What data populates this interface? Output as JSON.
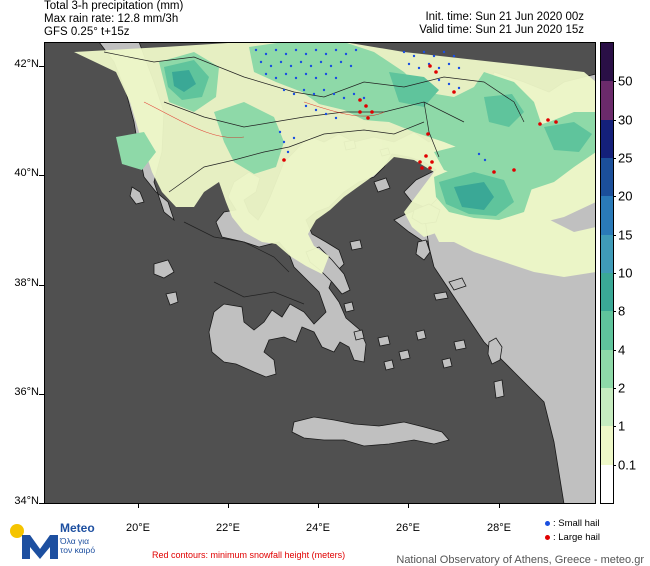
{
  "header": {
    "title": "Total 3-h precipitation (mm)",
    "max_rate": "Max rain rate: 12.8 mm/3h",
    "model": "GFS 0.25° t+15z",
    "init_time": "Init. time: Sun 21 Jun 2020 00z",
    "valid_time": "Valid time: Sun 21 Jun 2020 15z"
  },
  "axes": {
    "lat_labels": [
      "42°N",
      "40°N",
      "38°N",
      "36°N",
      "34°N"
    ],
    "lon_labels": [
      "20°E",
      "22°E",
      "24°E",
      "26°E",
      "28°E"
    ]
  },
  "colorbar": {
    "labels": [
      "50",
      "30",
      "25",
      "20",
      "15",
      "10",
      "8",
      "4",
      "2",
      "1",
      "0.1"
    ],
    "colors": [
      "#2a0f46",
      "#6b2a6b",
      "#14207a",
      "#1b4f9a",
      "#2a7ab8",
      "#3f9bb8",
      "#3aa896",
      "#5fc49c",
      "#8ed9a8",
      "#c6ecc0",
      "#eef8c8",
      "#ffffff"
    ]
  },
  "legend": {
    "small_hail": ": Small hail",
    "large_hail": ": Large hail",
    "small_hail_color": "#1a4fe0",
    "large_hail_color": "#e00000"
  },
  "footnote": "Red contours: minimum snowfall height (meters)",
  "credit": "National Observatory of Athens, Greece - meteo.gr",
  "logo": {
    "name": "Meteo",
    "tagline_1": "Όλα για",
    "tagline_2": "τον καιρό"
  },
  "colors": {
    "sea": "#505050",
    "land": "#c0c0c0",
    "light_precip": "#eef8c8",
    "green_precip": "#8ed9a8",
    "mid_precip": "#5fc49c",
    "teal_precip": "#3aa896"
  }
}
